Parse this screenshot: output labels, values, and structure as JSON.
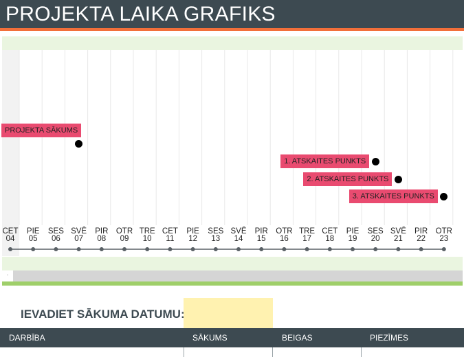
{
  "header": {
    "title": "PROJEKTA LAIKA GRAFIKS"
  },
  "timeline": {
    "days": [
      {
        "day": "CET",
        "date": "04"
      },
      {
        "day": "PIE",
        "date": "05"
      },
      {
        "day": "SES",
        "date": "06"
      },
      {
        "day": "SVĒ",
        "date": "07"
      },
      {
        "day": "PIR",
        "date": "08"
      },
      {
        "day": "OTR",
        "date": "09"
      },
      {
        "day": "TRE",
        "date": "10"
      },
      {
        "day": "CET",
        "date": "11"
      },
      {
        "day": "PIE",
        "date": "12"
      },
      {
        "day": "SES",
        "date": "13"
      },
      {
        "day": "SVĒ",
        "date": "14"
      },
      {
        "day": "PIR",
        "date": "15"
      },
      {
        "day": "OTR",
        "date": "16"
      },
      {
        "day": "TRE",
        "date": "17"
      },
      {
        "day": "CET",
        "date": "18"
      },
      {
        "day": "PIE",
        "date": "19"
      },
      {
        "day": "SES",
        "date": "20"
      },
      {
        "day": "SVĒ",
        "date": "21"
      },
      {
        "day": "PIR",
        "date": "22"
      },
      {
        "day": "OTR",
        "date": "23"
      }
    ],
    "milestones": [
      {
        "label": "PROJEKTA SĀKUMS",
        "day_index": 3
      },
      {
        "label": "1. ATSKAITES PUNKTS",
        "day_index": 16
      },
      {
        "label": "2. ATSKAITES PUNKTS",
        "day_index": 17
      },
      {
        "label": "3. ATSKAITES PUNKTS",
        "day_index": 19
      }
    ],
    "colors": {
      "label": "#e94b70",
      "dot": "#000000",
      "axis": "#5a6166"
    }
  },
  "scrollbar": {
    "thumb_glyph": "·"
  },
  "start_date": {
    "label": "IEVADIET SĀKUMA DATUMU:",
    "value": ""
  },
  "table": {
    "columns": [
      "DARBĪBA",
      "SĀKUMS",
      "BEIGAS",
      "PIEZĪMES"
    ]
  }
}
